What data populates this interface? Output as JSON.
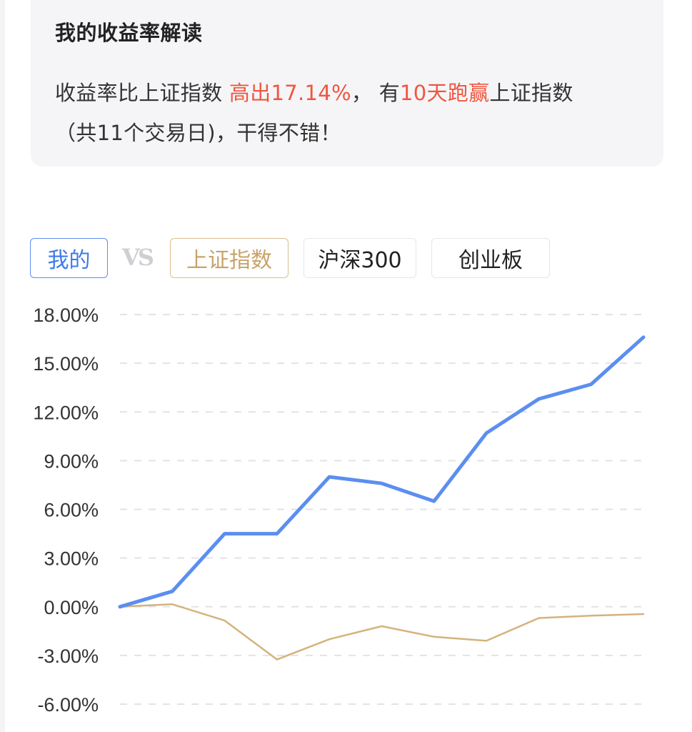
{
  "card": {
    "title": "我的收益率解读",
    "line1_prefix": "收益率比上证指数 ",
    "line1_highlight1": "高出17.14%",
    "line1_middle": "，  有",
    "line1_highlight2": "10天跑赢",
    "line1_suffix": "上证指数",
    "line2": "（共11个交易日)，干得不错！"
  },
  "tabs": {
    "mine": "我的",
    "vs": "VS",
    "shanghai": "上证指数",
    "hs300": "沪深300",
    "chinext": "创业板"
  },
  "colors": {
    "mine": "#5b8ef0",
    "shanghai": "#d4b37c",
    "highlight": "#f0563f",
    "grid": "#e3e3e6"
  },
  "chart_data": {
    "type": "line",
    "x": [
      1,
      2,
      3,
      4,
      5,
      6,
      7,
      8,
      9,
      10,
      11
    ],
    "ylim": [
      -6,
      18
    ],
    "yticks": [
      "18.00%",
      "15.00%",
      "12.00%",
      "9.00%",
      "6.00%",
      "3.00%",
      "0.00%",
      "-3.00%",
      "-6.00%"
    ],
    "ytick_values": [
      18,
      15,
      12,
      9,
      6,
      3,
      0,
      -3,
      -6
    ],
    "grid": "dashed-horizontal",
    "series": [
      {
        "name": "我的",
        "color": "#5b8ef0",
        "values": [
          0.0,
          0.95,
          4.5,
          4.5,
          8.0,
          7.6,
          6.5,
          10.7,
          12.8,
          13.7,
          16.6
        ]
      },
      {
        "name": "上证指数",
        "color": "#d4b37c",
        "values": [
          0.0,
          0.15,
          -0.85,
          -3.25,
          -2.0,
          -1.2,
          -1.85,
          -2.1,
          -0.7,
          -0.55,
          -0.45
        ]
      }
    ]
  }
}
